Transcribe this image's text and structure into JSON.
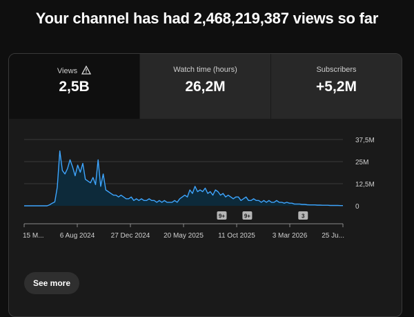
{
  "headline": "Your channel has had 2,468,219,387 views so far",
  "tabs": [
    {
      "label": "Views",
      "value": "2,5B"
    },
    {
      "label": "Watch time (hours)",
      "value": "26,2M"
    },
    {
      "label": "Subscribers",
      "value": "+5,2M"
    }
  ],
  "see_more_label": "See more",
  "colors": {
    "line": "#3ea6ff",
    "area": "#0d2a3a",
    "grid": "#3a3a3a"
  },
  "chart_data": {
    "type": "area",
    "x_tick_labels": [
      "15 M...",
      "6 Aug 2024",
      "27 Dec 2024",
      "20 May 2025",
      "11 Oct 2025",
      "3 Mar 2026",
      "25 Ju..."
    ],
    "y_tick_labels": [
      "37,5M",
      "25M",
      "12,5M",
      "0"
    ],
    "ylim": [
      0,
      37500000
    ],
    "markers": [
      {
        "label": "9+",
        "x_fraction": 0.62
      },
      {
        "label": "9+",
        "x_fraction": 0.7
      },
      {
        "label": "3",
        "x_fraction": 0.875
      }
    ],
    "series": [
      {
        "values": [
          0,
          0,
          0,
          0,
          0,
          0,
          0,
          0,
          0,
          0,
          0.6,
          1.5,
          2.2,
          10.5,
          31,
          20,
          18,
          21,
          26,
          22,
          17,
          23,
          19,
          24,
          15,
          14,
          13,
          16,
          12,
          26,
          11,
          18,
          9,
          8,
          7,
          6,
          6,
          5,
          6,
          5,
          4,
          4,
          5,
          3,
          4,
          3,
          4,
          3,
          3,
          4,
          3,
          3,
          2,
          3,
          2,
          3,
          2,
          2,
          2,
          3,
          2,
          4,
          5,
          6,
          5,
          9,
          7,
          11,
          8,
          9,
          8,
          10,
          7,
          8,
          6,
          9,
          8,
          6,
          7,
          5,
          6,
          5,
          4,
          5,
          5,
          3,
          4,
          5,
          3,
          3,
          4,
          3,
          3,
          2,
          3,
          2,
          3,
          2,
          2,
          3,
          2,
          2,
          1.5,
          2,
          1.5,
          1.5,
          1,
          1,
          1,
          0.8,
          0.8,
          0.6,
          0.5,
          0.5,
          0.5,
          0.4,
          0.4,
          0.3,
          0.3,
          0.3,
          0.2,
          0.2,
          0.2,
          0.2,
          0.1,
          0.1
        ]
      }
    ]
  }
}
